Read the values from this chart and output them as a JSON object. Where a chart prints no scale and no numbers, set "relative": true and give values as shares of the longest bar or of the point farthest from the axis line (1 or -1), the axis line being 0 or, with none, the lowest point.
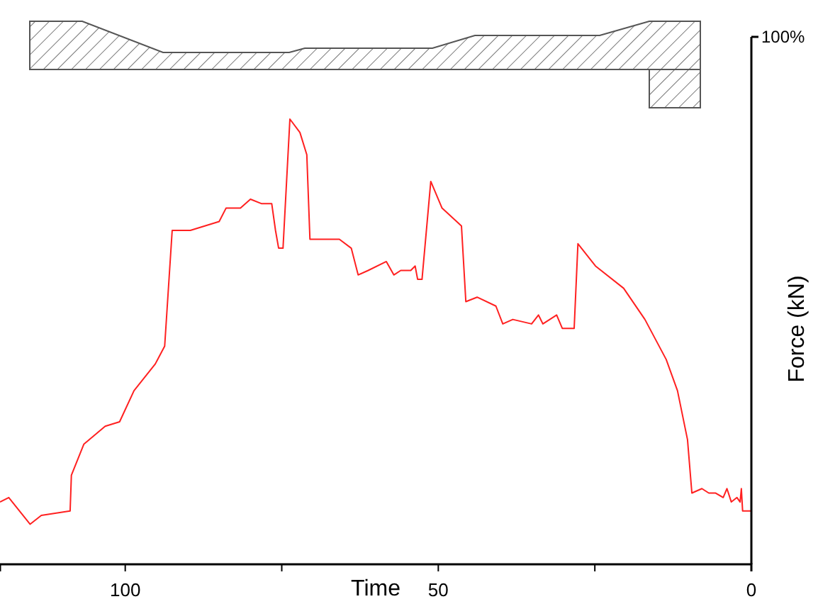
{
  "chart_data": {
    "type": "line",
    "xlabel": "Time",
    "ylabel": "Force (kN)",
    "relative": true,
    "annotations": [
      "100%"
    ],
    "xlim": [
      120,
      0
    ],
    "xticks": [
      {
        "value": 100,
        "label": "100"
      },
      {
        "value": 75,
        "label": null
      },
      {
        "value": 50,
        "label": "50"
      },
      {
        "value": 25,
        "label": null
      },
      {
        "value": 0,
        "label": "0"
      }
    ],
    "series": [
      {
        "color": "#ff2020",
        "x": [
          120,
          118.6,
          115.2,
          113.4,
          108.8,
          108.6,
          106.6,
          103.2,
          100.9,
          98.6,
          95.2,
          93.7,
          92.5,
          89.6,
          87.3,
          85.0,
          83.9,
          81.6,
          80.0,
          78.2,
          76.6,
          76.0,
          75.5,
          74.8,
          73.7,
          72.1,
          71.0,
          70.5,
          65.8,
          63.9,
          62.8,
          61.2,
          58.3,
          57.1,
          56.0,
          54.4,
          53.7,
          53.3,
          52.6,
          51.2,
          49.4,
          46.3,
          45.6,
          43.8,
          40.8,
          39.7,
          38.1,
          35.1,
          34.0,
          33.3,
          31.1,
          30.2,
          28.3,
          27.7,
          24.9,
          20.4,
          17.0,
          13.6,
          11.8,
          10.2,
          9.5,
          7.9,
          6.8,
          5.7,
          4.5,
          3.9,
          3.2,
          2.3,
          1.8,
          1.6,
          1.4,
          0
        ],
        "values": [
          0.14,
          0.15,
          0.09,
          0.11,
          0.12,
          0.2,
          0.27,
          0.31,
          0.32,
          0.39,
          0.45,
          0.49,
          0.75,
          0.75,
          0.76,
          0.77,
          0.8,
          0.8,
          0.82,
          0.81,
          0.81,
          0.75,
          0.71,
          0.71,
          1.0,
          0.97,
          0.92,
          0.73,
          0.73,
          0.71,
          0.65,
          0.66,
          0.68,
          0.65,
          0.66,
          0.66,
          0.67,
          0.64,
          0.64,
          0.86,
          0.8,
          0.76,
          0.59,
          0.6,
          0.58,
          0.54,
          0.55,
          0.54,
          0.56,
          0.54,
          0.56,
          0.53,
          0.53,
          0.72,
          0.67,
          0.62,
          0.55,
          0.46,
          0.39,
          0.28,
          0.16,
          0.17,
          0.16,
          0.16,
          0.15,
          0.17,
          0.14,
          0.15,
          0.14,
          0.17,
          0.12,
          0.12
        ]
      }
    ]
  }
}
